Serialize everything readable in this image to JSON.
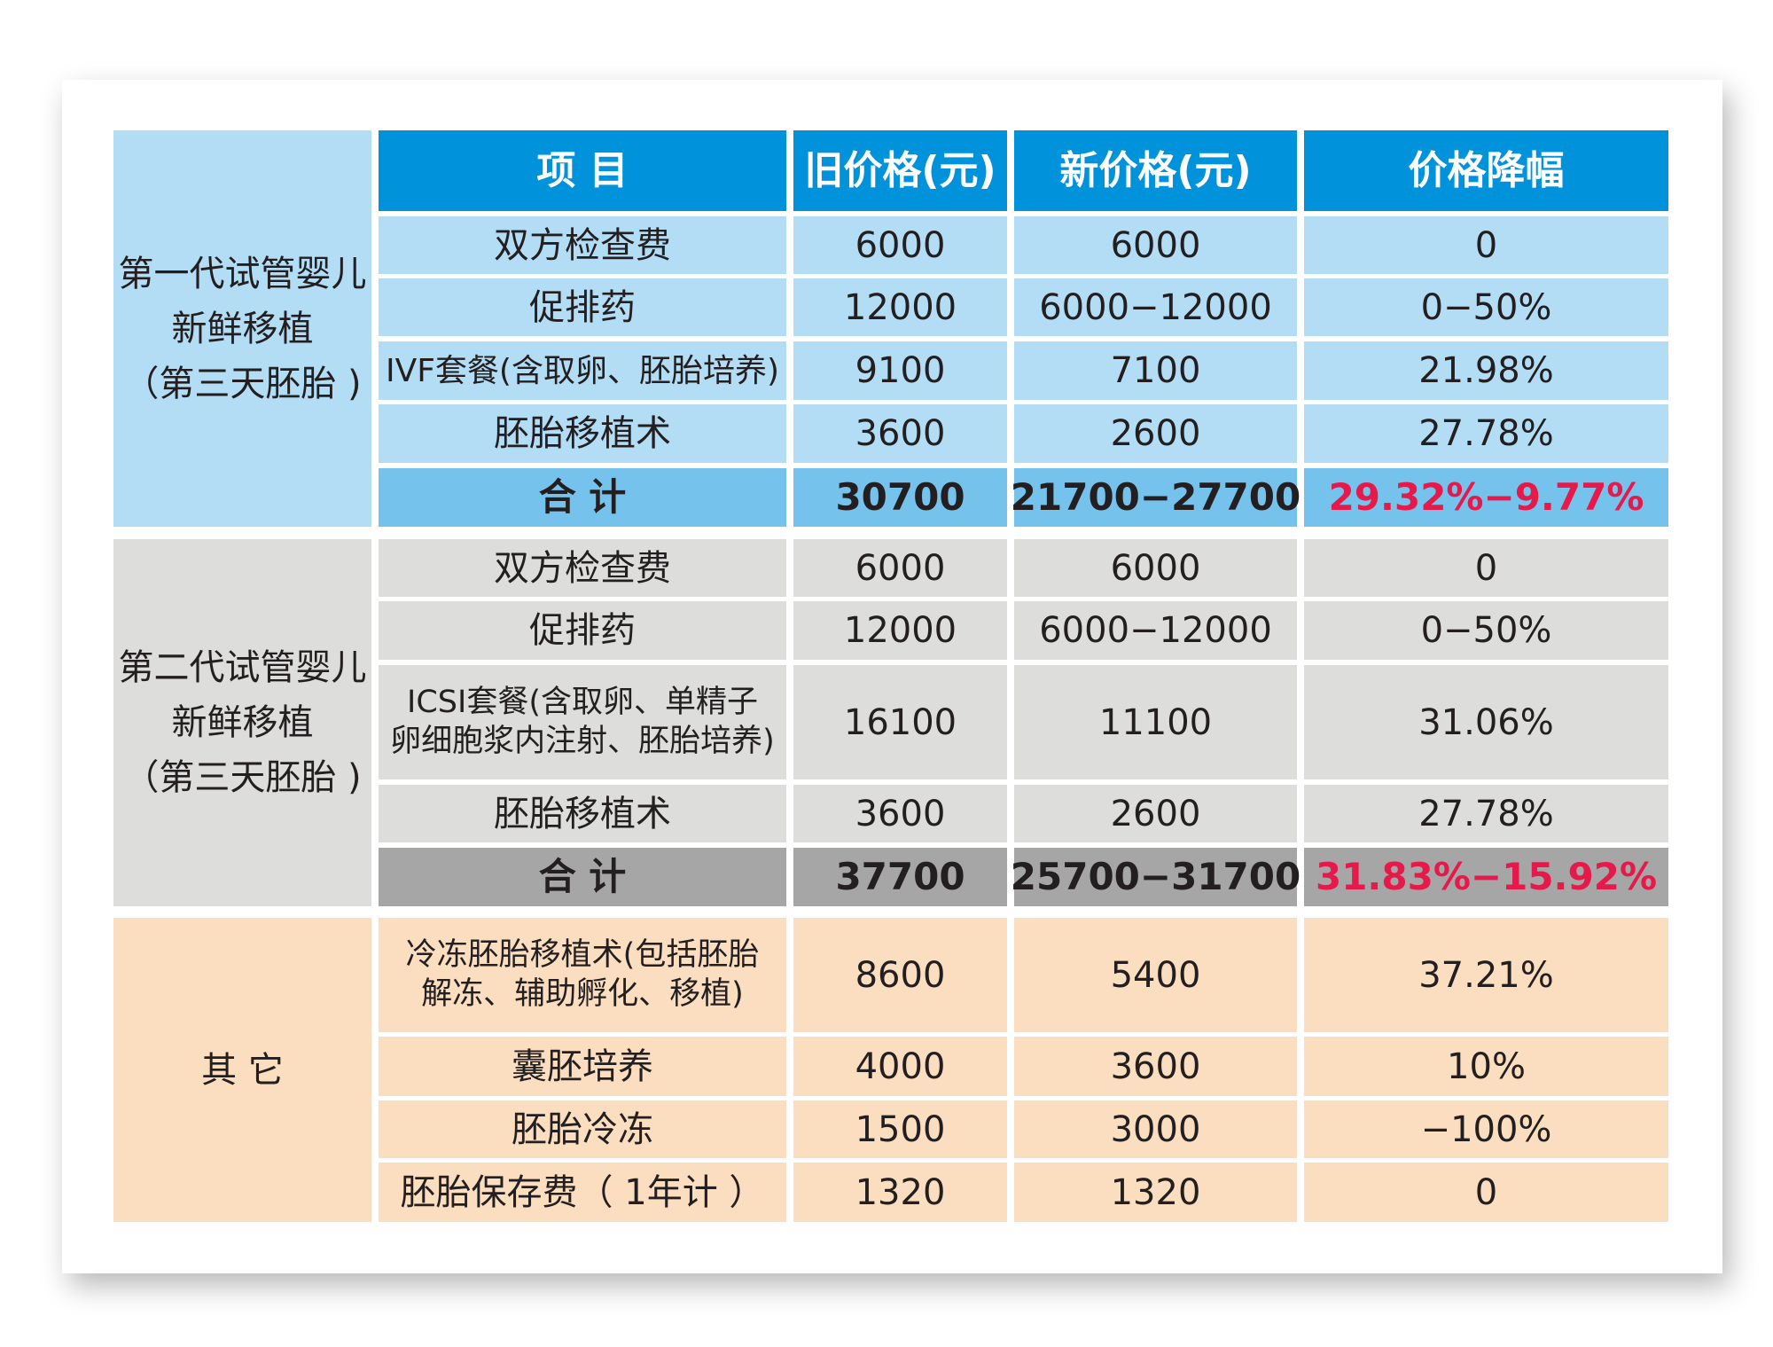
{
  "header": [
    "项  目",
    "旧价格(元)",
    "新价格(元)",
    "价格降幅"
  ],
  "groups": [
    {
      "label_lines": [
        "第一代试管婴儿",
        "新鲜移植",
        "（第三天胚胎 )"
      ],
      "rows": [
        {
          "item": "双方检查费",
          "old": "6000",
          "new": "6000",
          "reduction": "0"
        },
        {
          "item": "促排药",
          "old": "12000",
          "new": "6000−12000",
          "reduction": "0−50%"
        },
        {
          "item": "IVF套餐(含取卵、胚胎培养)",
          "old": "9100",
          "new": "7100",
          "reduction": "21.98%"
        },
        {
          "item": "胚胎移植术",
          "old": "3600",
          "new": "2600",
          "reduction": "27.78%"
        }
      ],
      "total": {
        "item": "合 计",
        "old": "30700",
        "new": "21700−27700",
        "reduction": "29.32%−9.77%"
      }
    },
    {
      "label_lines": [
        "第二代试管婴儿",
        "新鲜移植",
        "（第三天胚胎 )"
      ],
      "rows": [
        {
          "item": "双方检查费",
          "old": "6000",
          "new": "6000",
          "reduction": "0"
        },
        {
          "item": "促排药",
          "old": "12000",
          "new": "6000−12000",
          "reduction": "0−50%"
        },
        {
          "item": "ICSI套餐(含取卵、单精子\n卵细胞浆内注射、胚胎培养)",
          "old": "16100",
          "new": "11100",
          "reduction": "31.06%"
        },
        {
          "item": "胚胎移植术",
          "old": "3600",
          "new": "2600",
          "reduction": "27.78%"
        }
      ],
      "total": {
        "item": "合 计",
        "old": "37700",
        "new": "25700−31700",
        "reduction": "31.83%−15.92%"
      }
    },
    {
      "label_lines": [
        "其 它"
      ],
      "rows": [
        {
          "item": "冷冻胚胎移植术(包括胚胎\n解冻、辅助孵化、移植)",
          "old": "8600",
          "new": "5400",
          "reduction": "37.21%"
        },
        {
          "item": "囊胚培养",
          "old": "4000",
          "new": "3600",
          "reduction": "10%"
        },
        {
          "item": "胚胎冷冻",
          "old": "1500",
          "new": "3000",
          "reduction": "−100%"
        },
        {
          "item": "胚胎保存费（ 1年计 ）",
          "old": "1320",
          "new": "1320",
          "reduction": "0"
        }
      ]
    }
  ],
  "colors": {
    "header": "#0093dc",
    "group1": "#b3ddf5",
    "group1_total": "#75c2ec",
    "group2": "#dddddc",
    "group2_total": "#a6a6a6",
    "group3": "#fbdec0",
    "highlight_text": "#e5194a"
  }
}
